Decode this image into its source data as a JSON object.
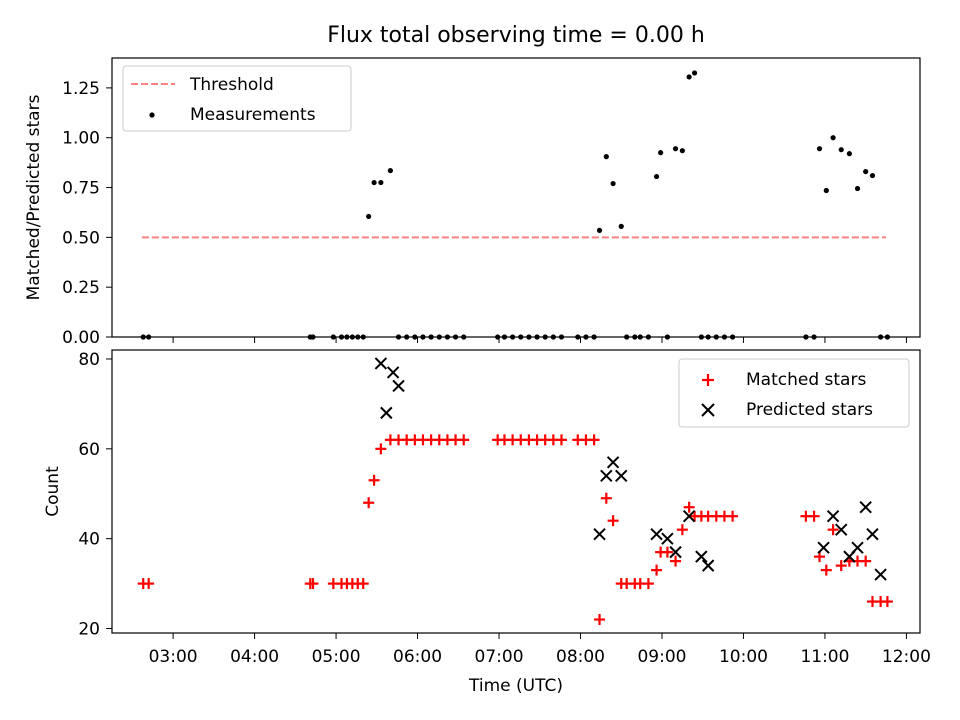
{
  "chart_data": [
    {
      "type": "scatter",
      "title": "Flux total observing time = 0.00 h",
      "xlabel": "",
      "ylabel": "Matched/Predicted stars",
      "xlim": [
        "02:15",
        "12:10"
      ],
      "ylim": [
        0,
        1.4
      ],
      "yticks": [
        0.0,
        0.25,
        0.5,
        0.75,
        1.0,
        1.25
      ],
      "ytick_labels": [
        "0.00",
        "0.25",
        "0.50",
        "0.75",
        "1.00",
        "1.25"
      ],
      "legend_position": "top-left",
      "grid": false,
      "series": [
        {
          "name": "Threshold",
          "kind": "line",
          "color": "#ff8080",
          "dash": "dashed",
          "x": [
            "02:37",
            "11:45"
          ],
          "y": [
            0.5,
            0.5
          ]
        },
        {
          "name": "Measurements",
          "kind": "scatter",
          "color": "#000000",
          "marker": "dot",
          "x": [
            "02:38",
            "02:42",
            "04:41",
            "04:43",
            "04:58",
            "05:04",
            "05:08",
            "05:12",
            "05:16",
            "05:20",
            "05:24",
            "05:28",
            "05:33",
            "05:40",
            "05:46",
            "05:52",
            "05:58",
            "06:04",
            "06:10",
            "06:16",
            "06:22",
            "06:28",
            "06:34",
            "06:59",
            "07:04",
            "07:10",
            "07:16",
            "07:22",
            "07:28",
            "07:34",
            "07:40",
            "07:46",
            "07:58",
            "08:04",
            "08:10",
            "08:14",
            "08:19",
            "08:24",
            "08:30",
            "08:34",
            "08:40",
            "08:44",
            "08:50",
            "08:56",
            "08:59",
            "09:04",
            "09:10",
            "09:15",
            "09:20",
            "09:24",
            "09:29",
            "09:34",
            "09:40",
            "09:46",
            "09:52",
            "10:46",
            "10:52",
            "10:56",
            "11:01",
            "11:06",
            "11:12",
            "11:18",
            "11:24",
            "11:30",
            "11:35",
            "11:41",
            "11:46"
          ],
          "y": [
            0,
            0,
            0,
            0,
            0,
            0,
            0,
            0,
            0,
            0,
            0.605,
            0.775,
            0.775,
            0.835,
            0,
            0,
            0,
            0,
            0,
            0,
            0,
            0,
            0,
            0,
            0,
            0,
            0,
            0,
            0,
            0,
            0,
            0,
            0,
            0,
            0,
            0.535,
            0.905,
            0.77,
            0.555,
            0,
            0,
            0,
            0,
            0.805,
            0.925,
            0,
            0.945,
            0.935,
            1.305,
            1.325,
            0,
            0,
            0,
            0,
            0,
            0,
            0,
            0.945,
            0.735,
            1.0,
            0.94,
            0.92,
            0.745,
            0.83,
            0.81,
            0,
            0
          ]
        }
      ]
    },
    {
      "type": "scatter",
      "title": "",
      "xlabel": "Time (UTC)",
      "ylabel": "Count",
      "xlim": [
        "02:15",
        "12:10"
      ],
      "ylim": [
        19,
        82
      ],
      "yticks": [
        20,
        40,
        60,
        80
      ],
      "ytick_labels": [
        "20",
        "40",
        "60",
        "80"
      ],
      "xticks": [
        "03:00",
        "04:00",
        "05:00",
        "06:00",
        "07:00",
        "08:00",
        "09:00",
        "10:00",
        "11:00",
        "12:00"
      ],
      "legend_position": "top-right",
      "grid": false,
      "series": [
        {
          "name": "Matched stars",
          "kind": "scatter",
          "color": "#ff0000",
          "marker": "plus",
          "x": [
            "02:38",
            "02:42",
            "04:41",
            "04:43",
            "04:58",
            "05:04",
            "05:08",
            "05:12",
            "05:16",
            "05:20",
            "05:24",
            "05:28",
            "05:33",
            "05:40",
            "05:46",
            "05:52",
            "05:58",
            "06:04",
            "06:10",
            "06:16",
            "06:22",
            "06:28",
            "06:34",
            "06:59",
            "07:04",
            "07:10",
            "07:16",
            "07:22",
            "07:28",
            "07:34",
            "07:40",
            "07:46",
            "07:58",
            "08:04",
            "08:10",
            "08:14",
            "08:19",
            "08:24",
            "08:30",
            "08:34",
            "08:40",
            "08:44",
            "08:50",
            "08:56",
            "08:59",
            "09:04",
            "09:10",
            "09:15",
            "09:20",
            "09:24",
            "09:29",
            "09:34",
            "09:40",
            "09:46",
            "09:52",
            "10:46",
            "10:52",
            "10:56",
            "11:01",
            "11:06",
            "11:12",
            "11:18",
            "11:24",
            "11:30",
            "11:35",
            "11:41",
            "11:46"
          ],
          "y": [
            30,
            30,
            30,
            30,
            30,
            30,
            30,
            30,
            30,
            30,
            48,
            53,
            60,
            62,
            62,
            62,
            62,
            62,
            62,
            62,
            62,
            62,
            62,
            62,
            62,
            62,
            62,
            62,
            62,
            62,
            62,
            62,
            62,
            62,
            62,
            22,
            49,
            44,
            30,
            30,
            30,
            30,
            30,
            33,
            37,
            37,
            35,
            42,
            47,
            45,
            45,
            45,
            45,
            45,
            45,
            45,
            45,
            36,
            33,
            42,
            34,
            35,
            35,
            35,
            26,
            26,
            26
          ]
        },
        {
          "name": "Predicted stars",
          "kind": "scatter",
          "color": "#000000",
          "marker": "x",
          "x": [
            "05:33",
            "05:37",
            "05:42",
            "05:46",
            "08:14",
            "08:19",
            "08:24",
            "08:30",
            "08:56",
            "09:04",
            "09:10",
            "09:20",
            "09:29",
            "09:34",
            "10:59",
            "11:06",
            "11:12",
            "11:18",
            "11:24",
            "11:30",
            "11:35",
            "11:41"
          ],
          "y": [
            79,
            68,
            77,
            74,
            41,
            54,
            57,
            54,
            41,
            40,
            37,
            45,
            36,
            34,
            38,
            45,
            42,
            36,
            38,
            47,
            41,
            32
          ]
        }
      ]
    }
  ]
}
